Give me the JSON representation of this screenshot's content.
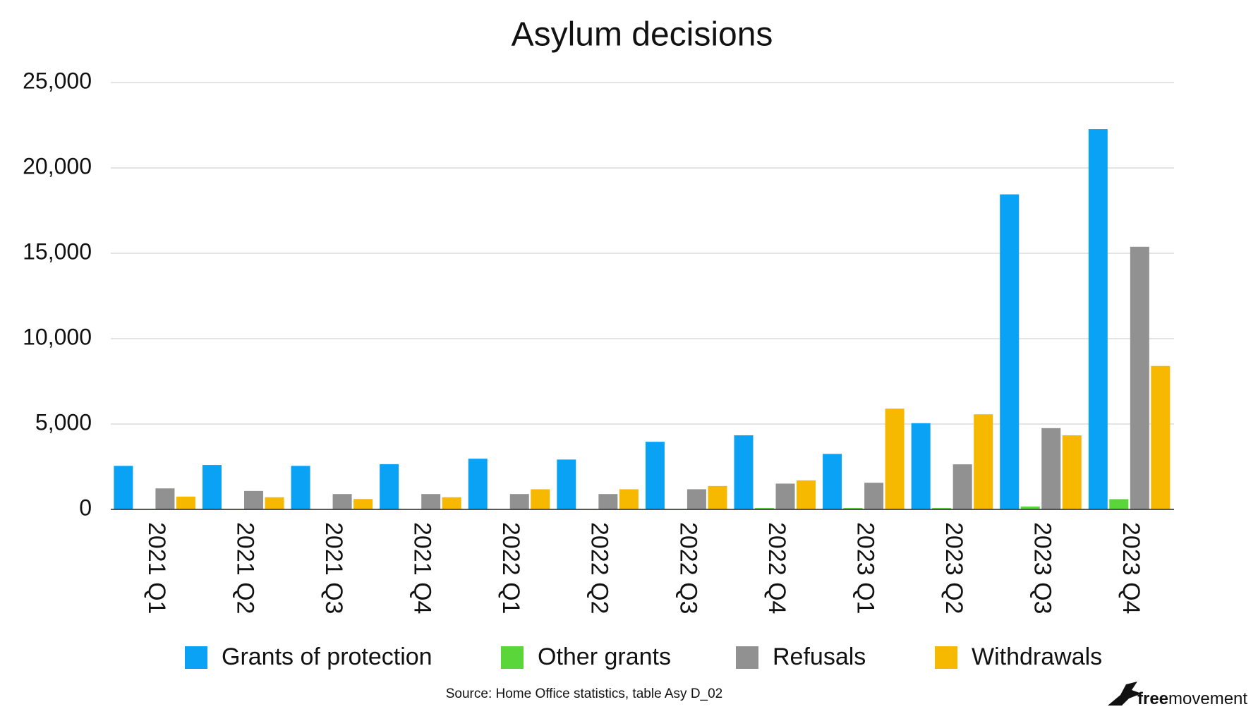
{
  "chart_data": {
    "type": "bar",
    "title": "Asylum decisions",
    "categories": [
      "2021 Q1",
      "2021 Q2",
      "2021 Q3",
      "2021 Q4",
      "2022 Q1",
      "2022 Q2",
      "2022 Q3",
      "2022 Q4",
      "2023 Q1",
      "2023 Q2",
      "2023 Q3",
      "2023 Q4"
    ],
    "series": [
      {
        "name": "Grants of protection",
        "color": "#0aa2f5",
        "values": [
          2550,
          2600,
          2550,
          2650,
          2970,
          2920,
          3960,
          4340,
          3250,
          5050,
          18450,
          22270
        ]
      },
      {
        "name": "Other grants",
        "color": "#5ad53a",
        "values": [
          30,
          30,
          10,
          10,
          10,
          30,
          30,
          80,
          80,
          80,
          170,
          600
        ]
      },
      {
        "name": "Refusals",
        "color": "#919191",
        "values": [
          1230,
          1080,
          900,
          900,
          900,
          900,
          1180,
          1510,
          1560,
          2640,
          4760,
          15380
        ]
      },
      {
        "name": "Withdrawals",
        "color": "#f7b800",
        "values": [
          750,
          710,
          610,
          710,
          1180,
          1180,
          1370,
          1700,
          5900,
          5570,
          4340,
          8400
        ]
      }
    ],
    "ylim": [
      0,
      25000
    ],
    "yticks": [
      0,
      {
        "value": 5000,
        "label": "5,000"
      },
      {
        "value": 10000,
        "label": "10,000"
      },
      {
        "value": 15000,
        "label": "15,000"
      },
      {
        "value": 20000,
        "label": "20,000"
      },
      {
        "value": 25000,
        "label": "25,000"
      }
    ],
    "grid": true,
    "source": "Source: Home Office statistics, table Asy D_02",
    "logo": {
      "bold": "free",
      "regular": "movement"
    }
  }
}
